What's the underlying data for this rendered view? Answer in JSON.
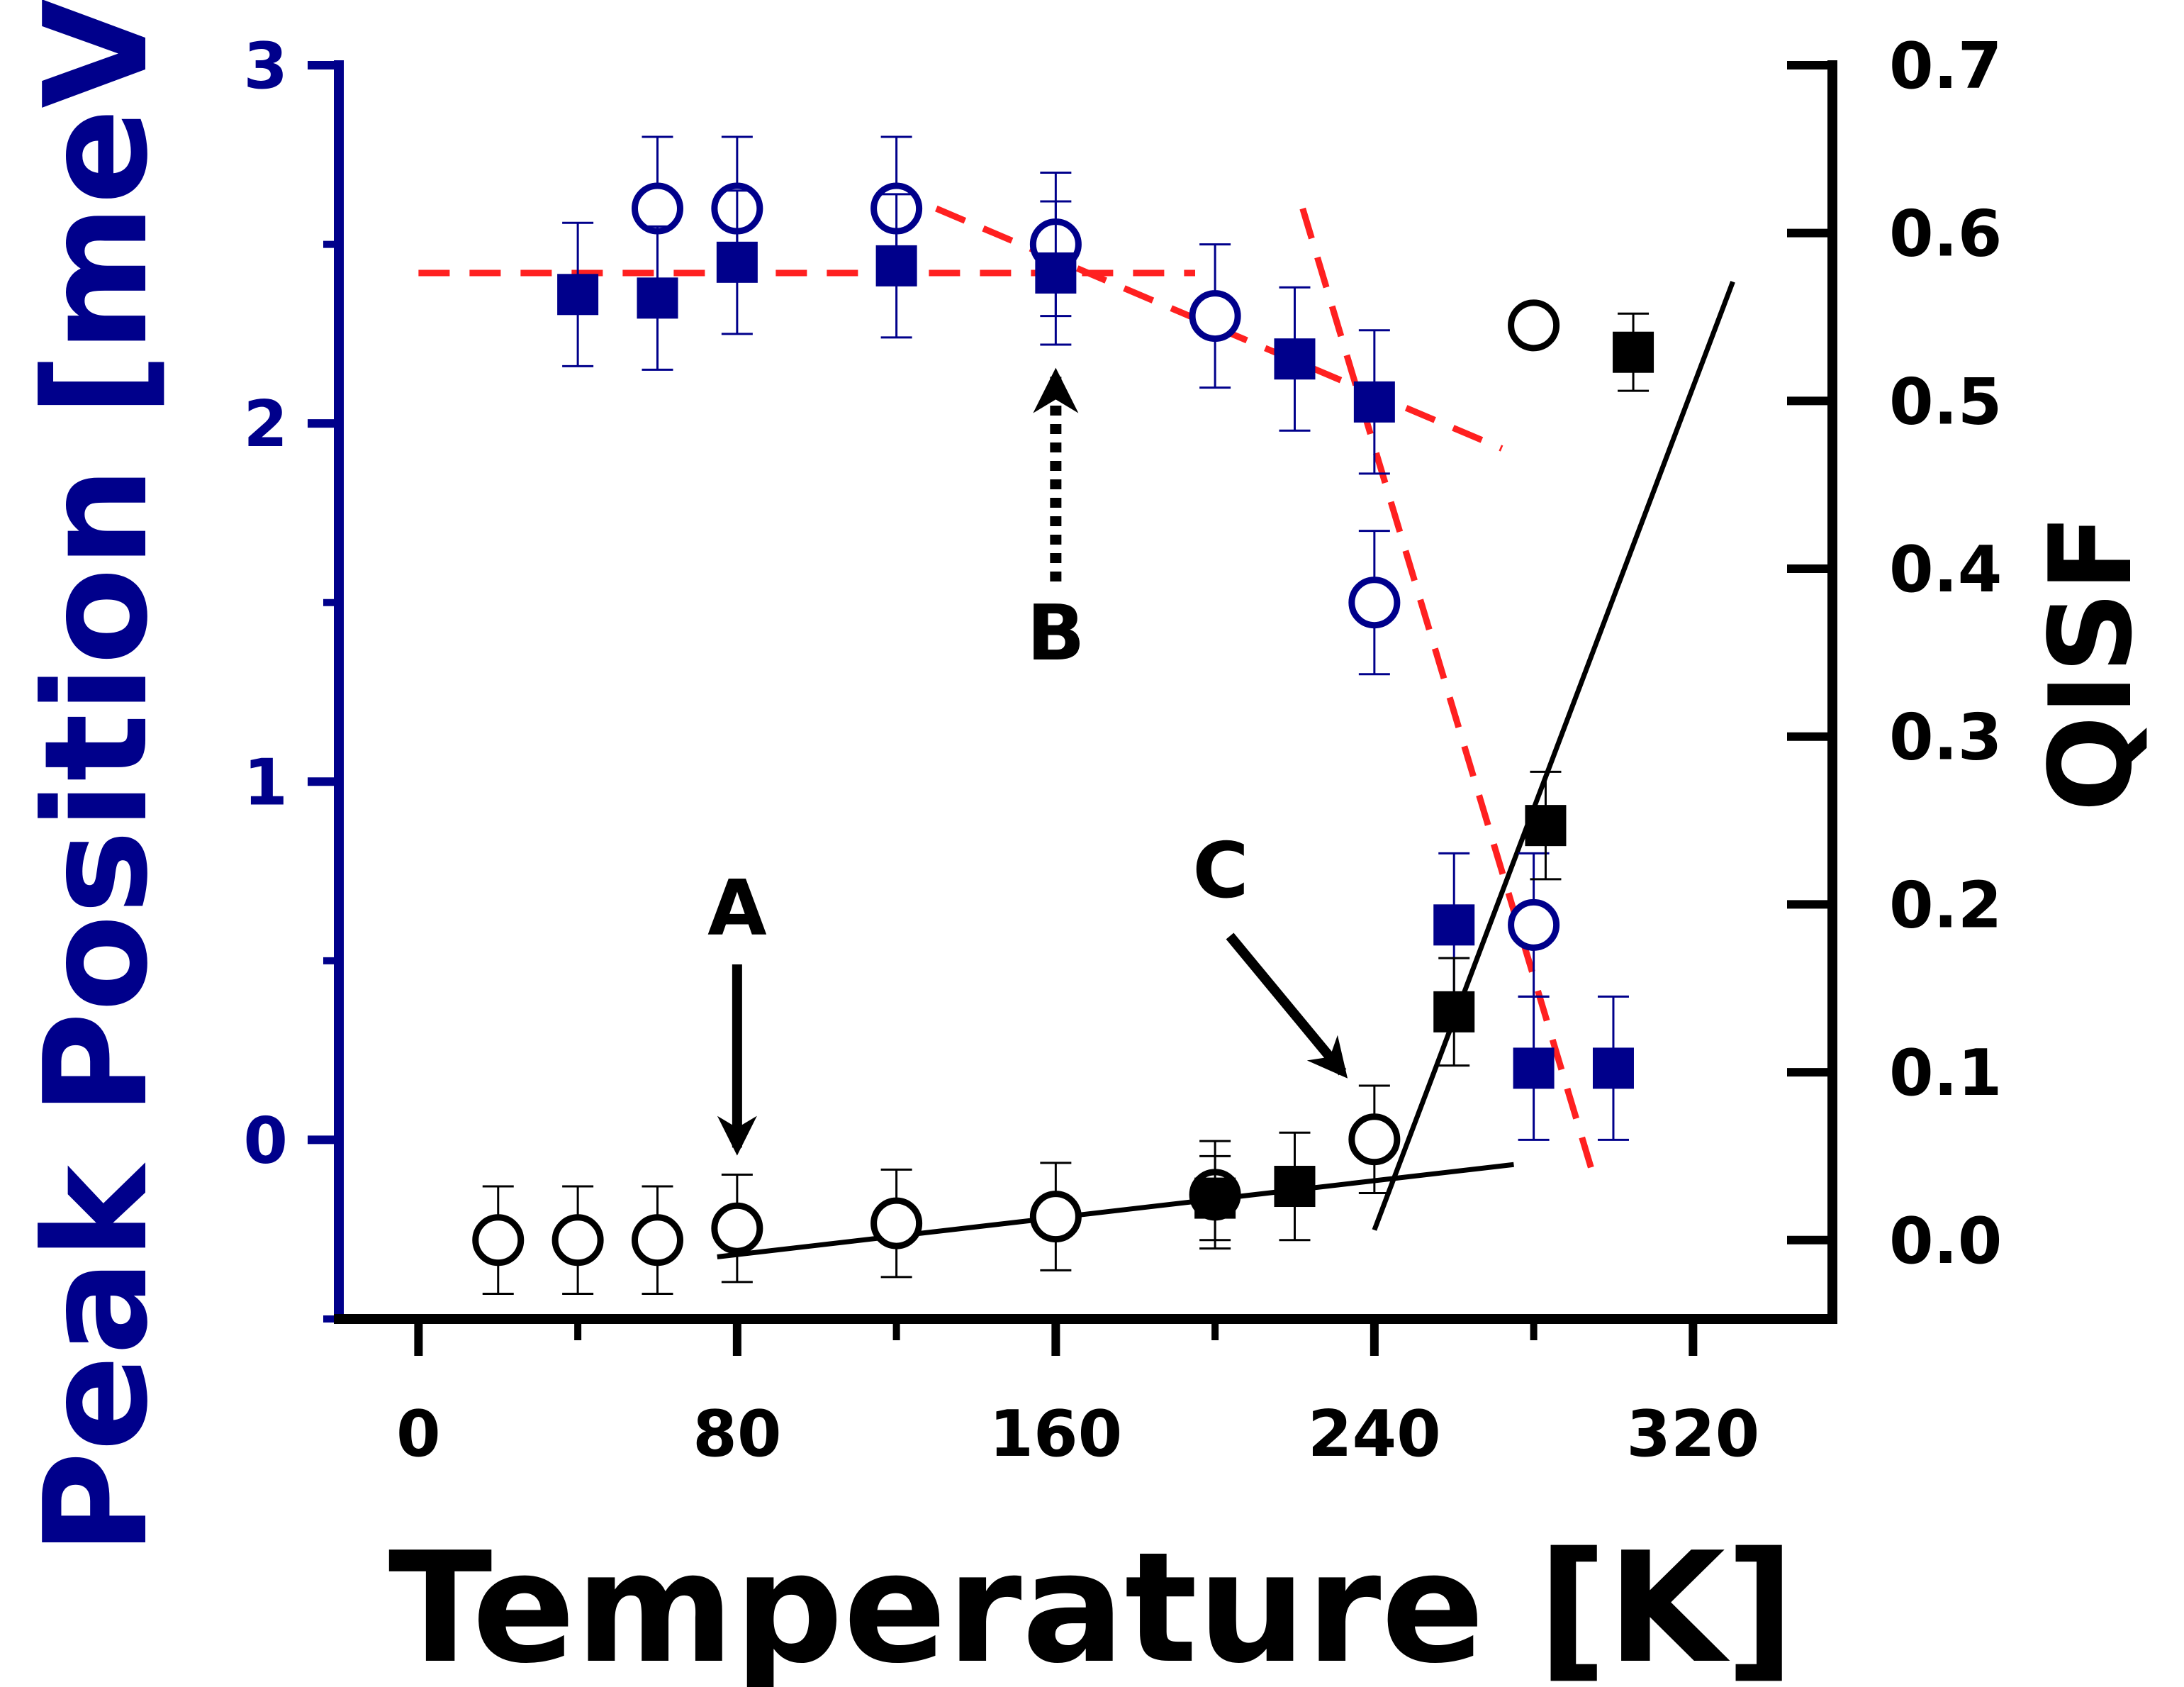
{
  "chart_data": {
    "type": "scatter",
    "xlabel": "Temperature [K]",
    "ylabel_left": "Peak Position [meV]",
    "ylabel_right": "QISF",
    "xlim": [
      -20,
      355
    ],
    "ylim_left": [
      -0.5,
      3.0
    ],
    "ylim_right": [
      -0.047,
      0.7
    ],
    "x_ticks": [
      0,
      80,
      160,
      240,
      320
    ],
    "x_tick_labels": [
      "0",
      "80",
      "160",
      "240",
      "320"
    ],
    "y_left_ticks": [
      0,
      1,
      2,
      3
    ],
    "y_left_tick_labels": [
      "0",
      "1",
      "2",
      "3"
    ],
    "y_right_ticks": [
      0.0,
      0.1,
      0.2,
      0.3,
      0.4,
      0.5,
      0.6,
      0.7
    ],
    "y_right_tick_labels": [
      "0.0",
      "0.1",
      "0.2",
      "0.3",
      "0.4",
      "0.5",
      "0.6",
      "0.7"
    ],
    "colors": {
      "peak": "#00008B",
      "qisf": "#000000",
      "fit_peak": "#FF2020",
      "fit_qisf": "#000000"
    },
    "series": [
      {
        "name": "Peak position (open circles)",
        "axis": "left",
        "marker": "open-circle",
        "color": "#00008B",
        "points": [
          {
            "x": 60,
            "y": 2.6,
            "err": 0.2
          },
          {
            "x": 80,
            "y": 2.6,
            "err": 0.2
          },
          {
            "x": 120,
            "y": 2.6,
            "err": 0.2
          },
          {
            "x": 160,
            "y": 2.5,
            "err": 0.2
          },
          {
            "x": 200,
            "y": 2.3,
            "err": 0.2
          },
          {
            "x": 240,
            "y": 1.5,
            "err": 0.2
          },
          {
            "x": 280,
            "y": 0.6,
            "err": 0.2
          }
        ]
      },
      {
        "name": "Peak position (filled squares)",
        "axis": "left",
        "marker": "filled-square",
        "color": "#00008B",
        "points": [
          {
            "x": 40,
            "y": 2.36,
            "err": 0.2
          },
          {
            "x": 60,
            "y": 2.35,
            "err": 0.2
          },
          {
            "x": 80,
            "y": 2.45,
            "err": 0.2
          },
          {
            "x": 120,
            "y": 2.44,
            "err": 0.2
          },
          {
            "x": 160,
            "y": 2.42,
            "err": 0.2
          },
          {
            "x": 220,
            "y": 2.18,
            "err": 0.2
          },
          {
            "x": 240,
            "y": 2.06,
            "err": 0.2
          },
          {
            "x": 260,
            "y": 0.6,
            "err": 0.2
          },
          {
            "x": 280,
            "y": 0.2,
            "err": 0.2
          },
          {
            "x": 300,
            "y": 0.2,
            "err": 0.2
          }
        ]
      },
      {
        "name": "QISF (open circles)",
        "axis": "right",
        "marker": "open-circle",
        "color": "#000000",
        "points": [
          {
            "x": 20,
            "y": 0.0,
            "err": 0.032
          },
          {
            "x": 40,
            "y": 0.0,
            "err": 0.032
          },
          {
            "x": 60,
            "y": 0.0,
            "err": 0.032
          },
          {
            "x": 80,
            "y": 0.007,
            "err": 0.032
          },
          {
            "x": 120,
            "y": 0.01,
            "err": 0.032
          },
          {
            "x": 160,
            "y": 0.014,
            "err": 0.032
          },
          {
            "x": 200,
            "y": 0.027,
            "err": 0.032
          },
          {
            "x": 240,
            "y": 0.06,
            "err": 0.032
          },
          {
            "x": 280,
            "y": 0.545,
            "err": 0.008
          }
        ]
      },
      {
        "name": "QISF (filled squares)",
        "axis": "right",
        "marker": "filled-square",
        "color": "#000000",
        "points": [
          {
            "x": 200,
            "y": 0.025,
            "err": 0.025
          },
          {
            "x": 220,
            "y": 0.032,
            "err": 0.032
          },
          {
            "x": 260,
            "y": 0.136,
            "err": 0.032
          },
          {
            "x": 283,
            "y": 0.247,
            "err": 0.032
          },
          {
            "x": 305,
            "y": 0.529,
            "err": 0.023
          }
        ]
      }
    ],
    "fit_lines": [
      {
        "name": "peak-fit-plateau",
        "axis": "left",
        "style": "dashed",
        "color": "#FF2020",
        "from": [
          0,
          2.42
        ],
        "to": [
          195,
          2.42
        ]
      },
      {
        "name": "peak-fit-slope",
        "axis": "left",
        "style": "dashed",
        "color": "#FF2020",
        "from": [
          130,
          2.6
        ],
        "to": [
          272,
          1.93
        ]
      },
      {
        "name": "peak-fit-drop",
        "axis": "left",
        "style": "dashed",
        "color": "#FF2020",
        "from": [
          222,
          2.6
        ],
        "to": [
          295,
          -0.1
        ]
      },
      {
        "name": "qisf-fit-low",
        "axis": "right",
        "style": "solid",
        "color": "#000000",
        "from": [
          75,
          -0.01
        ],
        "to": [
          275,
          0.045
        ]
      },
      {
        "name": "qisf-fit-high",
        "axis": "right",
        "style": "solid",
        "color": "#000000",
        "from": [
          240,
          0.006
        ],
        "to": [
          330,
          0.571
        ]
      }
    ],
    "annotations": [
      {
        "label": "A",
        "arrow": "solid-down",
        "target": [
          80,
          0.05
        ],
        "axis": "right"
      },
      {
        "label": "B",
        "arrow": "dotted-up",
        "target": [
          160,
          2.15
        ],
        "axis": "left"
      },
      {
        "label": "C",
        "arrow": "solid-diagonal",
        "target": [
          232,
          0.1
        ],
        "axis": "right"
      }
    ]
  }
}
